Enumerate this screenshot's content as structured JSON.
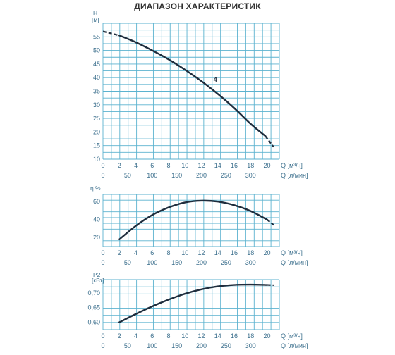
{
  "title": "ДИАПАЗОН ХАРАКТЕРИСТИК",
  "colors": {
    "grid": "#5bb2cf",
    "curve": "#1f2d3d",
    "text": "#3a6e8c"
  },
  "chart_data": [
    {
      "type": "line",
      "ylabel_top": "H",
      "ylabel_unit": "[м]",
      "ylim": [
        10,
        60
      ],
      "yticks": [
        10,
        15,
        20,
        25,
        30,
        35,
        40,
        45,
        50,
        55
      ],
      "xlim_q1": [
        0,
        21.5
      ],
      "x1_ticks": [
        0,
        2,
        4,
        6,
        8,
        10,
        12,
        14,
        16,
        18,
        20
      ],
      "x1_unit": "Q [м³/ч]",
      "x2_ticks": [
        0,
        50,
        100,
        150,
        200,
        250,
        300
      ],
      "x2_unit": "Q [л/мин]",
      "x2_factor": 16.6667,
      "series": [
        {
          "name": "4",
          "x": [
            2,
            4,
            6,
            8,
            10,
            12,
            14,
            16,
            18,
            19.8
          ],
          "y": [
            55.5,
            53.0,
            50.0,
            46.7,
            42.9,
            38.7,
            34.0,
            28.8,
            23.0,
            18.5
          ],
          "lead_x": [
            0,
            2
          ],
          "lead_y": [
            57,
            55.5
          ],
          "tail_x": [
            19.8,
            20.8
          ],
          "tail_y": [
            18.5,
            14.5
          ]
        }
      ],
      "annotation": {
        "text": "4",
        "x": 13.7,
        "y": 38.5
      }
    },
    {
      "type": "line",
      "ylabel": "η %",
      "ylim": [
        10,
        68
      ],
      "yticks": [
        20,
        40,
        60
      ],
      "xlim_q1": [
        0,
        21.5
      ],
      "x1_ticks": [
        0,
        2,
        4,
        6,
        8,
        10,
        12,
        14,
        16,
        18,
        20
      ],
      "x1_unit": "Q [м³/ч]",
      "x2_ticks": [
        0,
        50,
        100,
        150,
        200,
        250,
        300
      ],
      "x2_unit": "Q [л/мин]",
      "x2_factor": 16.6667,
      "series": [
        {
          "x": [
            2,
            4,
            6,
            8,
            10,
            12,
            14,
            16,
            18,
            20
          ],
          "y": [
            18,
            33,
            45,
            53.5,
            59,
            61,
            60,
            56,
            49.5,
            40
          ],
          "tail_x": [
            20,
            20.8
          ],
          "tail_y": [
            40,
            34
          ]
        }
      ]
    },
    {
      "type": "line",
      "ylabel_top": "P2",
      "ylabel_unit": "[кВт]",
      "ylim": [
        0.575,
        0.745
      ],
      "yticks": [
        0.6,
        0.65,
        0.7
      ],
      "ytick_labels": [
        "0,60",
        "0,65",
        "0,70"
      ],
      "xlim_q1": [
        0,
        21.5
      ],
      "x1_ticks": [
        0,
        2,
        4,
        6,
        8,
        10,
        12,
        14,
        16,
        18,
        20
      ],
      "x1_unit": "Q [м³/ч]",
      "x2_ticks": [
        0,
        50,
        100,
        150,
        200,
        250,
        300
      ],
      "x2_unit": "Q [л/мин]",
      "x2_factor": 16.6667,
      "series": [
        {
          "x": [
            2,
            4,
            6,
            8,
            10,
            12,
            14,
            16,
            18,
            20
          ],
          "y": [
            0.6,
            0.628,
            0.654,
            0.677,
            0.697,
            0.712,
            0.722,
            0.727,
            0.728,
            0.727
          ],
          "tail_x": [
            20,
            20.8
          ],
          "tail_y": [
            0.727,
            0.726
          ]
        }
      ]
    }
  ]
}
